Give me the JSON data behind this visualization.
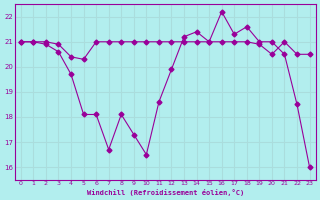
{
  "xlabel": "Windchill (Refroidissement éolien,°C)",
  "background_color": "#b2eeee",
  "grid_color": "#aadddd",
  "line_color": "#990099",
  "x": [
    0,
    1,
    2,
    3,
    4,
    5,
    6,
    7,
    8,
    9,
    10,
    11,
    12,
    13,
    14,
    15,
    16,
    17,
    18,
    19,
    20,
    21,
    22,
    23
  ],
  "line1": [
    21,
    21,
    21,
    20.9,
    20.4,
    20.3,
    21,
    21,
    21,
    21,
    21,
    21,
    21,
    21,
    21,
    21,
    21,
    21,
    21,
    20.9,
    20.5,
    21,
    20.5,
    20.5
  ],
  "line2": [
    21,
    21,
    20.9,
    20.6,
    19.7,
    18.1,
    18.1,
    16.7,
    18.1,
    17.3,
    16.5,
    18.6,
    19.9,
    21.2,
    21.4,
    21,
    22.2,
    21.3,
    21.6,
    21,
    21,
    20.5,
    18.5,
    16
  ],
  "ylim": [
    15.5,
    22.5
  ],
  "xlim": [
    -0.5,
    23.5
  ],
  "yticks": [
    16,
    17,
    18,
    19,
    20,
    21,
    22
  ],
  "xticks": [
    0,
    1,
    2,
    3,
    4,
    5,
    6,
    7,
    8,
    9,
    10,
    11,
    12,
    13,
    14,
    15,
    16,
    17,
    18,
    19,
    20,
    21,
    22,
    23
  ]
}
